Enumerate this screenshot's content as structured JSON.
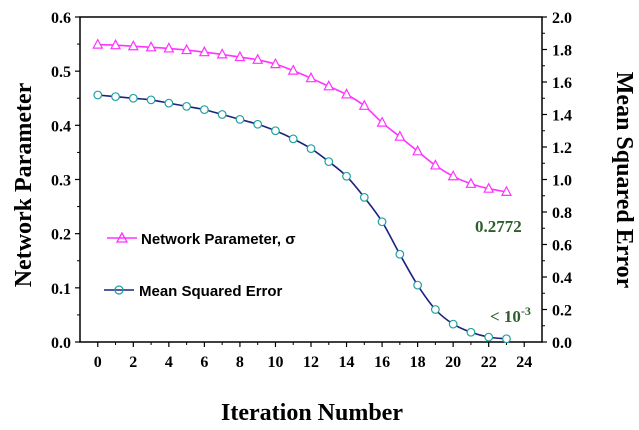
{
  "chart_data": {
    "type": "line",
    "xlabel": "Iteration Number",
    "ylabel_left": "Network Parameter",
    "ylabel_right": "Mean Squared Error",
    "xlim": [
      -1,
      25
    ],
    "ylim_left": [
      0,
      0.6
    ],
    "ylim_right": [
      0,
      2.0
    ],
    "x_ticks": [
      "0",
      "2",
      "4",
      "6",
      "8",
      "10",
      "12",
      "14",
      "16",
      "18",
      "20",
      "22",
      "24"
    ],
    "y_left_ticks": [
      "0.0",
      "0.1",
      "0.2",
      "0.3",
      "0.4",
      "0.5",
      "0.6"
    ],
    "y_right_ticks": [
      "0.0",
      "0.2",
      "0.4",
      "0.6",
      "0.8",
      "1.0",
      "1.2",
      "1.4",
      "1.6",
      "1.8",
      "2.0"
    ],
    "grid": false,
    "legend_position": "center-left",
    "series": [
      {
        "name": "Network Parameter, σ",
        "axis": "left",
        "marker": "triangle",
        "color": "#ff33ff",
        "x": [
          0,
          1,
          2,
          3,
          4,
          5,
          6,
          7,
          8,
          9,
          10,
          11,
          12,
          13,
          14,
          15,
          16,
          17,
          18,
          19,
          20,
          21,
          22,
          23
        ],
        "y": [
          0.549,
          0.548,
          0.546,
          0.544,
          0.542,
          0.539,
          0.535,
          0.531,
          0.526,
          0.521,
          0.513,
          0.501,
          0.487,
          0.472,
          0.457,
          0.436,
          0.405,
          0.379,
          0.352,
          0.326,
          0.306,
          0.292,
          0.283,
          0.2772
        ]
      },
      {
        "name": "Mean Squared Error",
        "axis": "right",
        "marker": "circle",
        "color": "#20a0a0",
        "line_color": "#1a237e",
        "x": [
          0,
          1,
          2,
          3,
          4,
          5,
          6,
          7,
          8,
          9,
          10,
          11,
          12,
          13,
          14,
          15,
          16,
          17,
          18,
          19,
          20,
          21,
          22,
          23
        ],
        "y": [
          1.52,
          1.51,
          1.5,
          1.49,
          1.47,
          1.45,
          1.43,
          1.4,
          1.37,
          1.34,
          1.3,
          1.25,
          1.19,
          1.11,
          1.02,
          0.89,
          0.74,
          0.54,
          0.35,
          0.2,
          0.11,
          0.06,
          0.03,
          0.02
        ]
      }
    ],
    "annotations": [
      {
        "text": "0.2772",
        "color": "#2e5e2e"
      },
      {
        "text": "< 10",
        "sup": "-3",
        "color": "#2e5e2e"
      }
    ]
  }
}
